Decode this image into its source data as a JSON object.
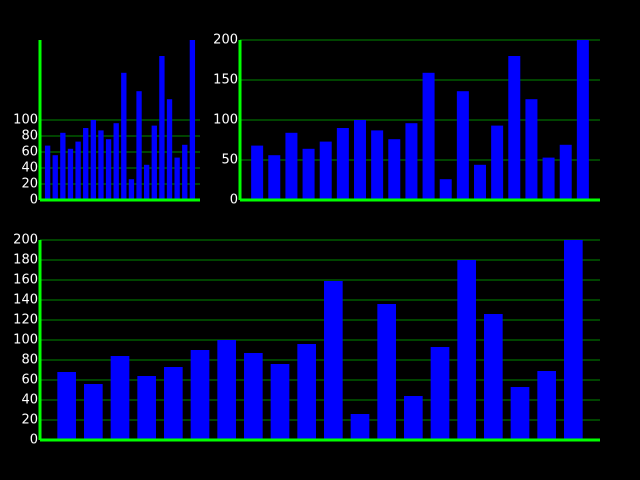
{
  "chart_data": [
    {
      "type": "bar",
      "values": [
        68,
        56,
        84,
        64,
        73,
        90,
        100,
        87,
        76,
        96,
        159,
        26,
        136,
        44,
        93,
        180,
        126,
        53,
        69,
        200
      ],
      "color": "#0000ff",
      "ylim": [
        0,
        200
      ],
      "yticks": [
        0,
        20,
        40,
        60,
        80,
        100
      ],
      "grid": true
    },
    {
      "type": "bar",
      "values": [
        68,
        56,
        84,
        64,
        73,
        90,
        100,
        87,
        76,
        96,
        159,
        26,
        136,
        44,
        93,
        180,
        126,
        53,
        69,
        200
      ],
      "color": "#0000ff",
      "ylim": [
        0,
        200
      ],
      "yticks": [
        0,
        50,
        100,
        150,
        200
      ],
      "grid": true
    },
    {
      "type": "bar",
      "values": [
        68,
        56,
        84,
        64,
        73,
        90,
        100,
        87,
        76,
        96,
        159,
        26,
        136,
        44,
        93,
        180,
        126,
        53,
        69,
        200
      ],
      "color": "#0000ff",
      "ylim": [
        0,
        200
      ],
      "yticks": [
        0,
        20,
        40,
        60,
        80,
        100,
        120,
        140,
        160,
        180,
        200
      ],
      "grid": true
    }
  ]
}
